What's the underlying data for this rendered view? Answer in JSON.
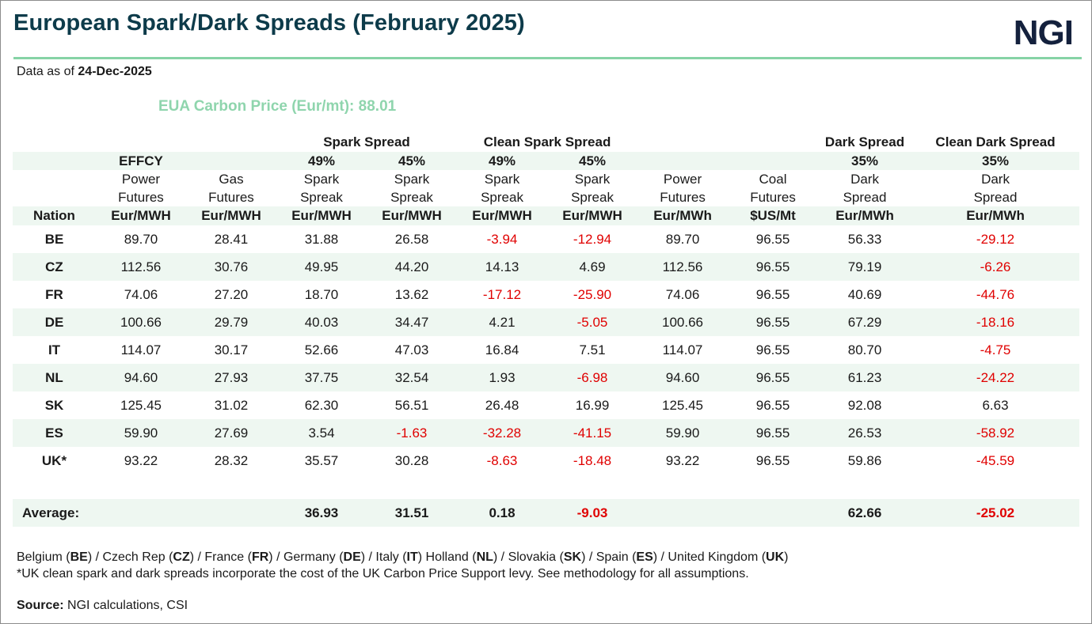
{
  "title": "European Spark/Dark Spreads (February 2025)",
  "logo": "NGI",
  "as_of_label": "Data as of",
  "as_of_date": "24-Dec-2025",
  "carbon_price": "EUA Carbon Price (Eur/mt): 88.01",
  "header": {
    "groups": {
      "spark": "Spark Spread",
      "clean_spark": "Clean Spark Spread",
      "dark": "Dark Spread",
      "clean_dark": "Clean Dark Spread"
    },
    "effcy": "EFFCY",
    "eff": {
      "spark_49": "49%",
      "spark_45": "45%",
      "clean_49": "49%",
      "clean_45": "45%",
      "dark_35": "35%",
      "clean_dark_35": "35%"
    },
    "line1": [
      "Power",
      "Gas",
      "Spark",
      "Spark",
      "Spark",
      "Spark",
      "Power",
      "Coal",
      "Dark",
      "Dark"
    ],
    "line2": [
      "Futures",
      "Futures",
      "Spreak",
      "Spreak",
      "Spreak",
      "Spreak",
      "Futures",
      "Futures",
      "Spread",
      "Spread"
    ],
    "units": [
      "Nation",
      "Eur/MWH",
      "Eur/MWH",
      "Eur/MWH",
      "Eur/MWH",
      "Eur/MWH",
      "Eur/MWH",
      "Eur/MWh",
      "$US/Mt",
      "Eur/MWh",
      "Eur/MWh"
    ]
  },
  "rows": [
    {
      "nation": "BE",
      "cells": [
        "89.70",
        "28.41",
        "31.88",
        "26.58",
        "-3.94",
        "-12.94",
        "89.70",
        "96.55",
        "56.33",
        "-29.12"
      ]
    },
    {
      "nation": "CZ",
      "cells": [
        "112.56",
        "30.76",
        "49.95",
        "44.20",
        "14.13",
        "4.69",
        "112.56",
        "96.55",
        "79.19",
        "-6.26"
      ]
    },
    {
      "nation": "FR",
      "cells": [
        "74.06",
        "27.20",
        "18.70",
        "13.62",
        "-17.12",
        "-25.90",
        "74.06",
        "96.55",
        "40.69",
        "-44.76"
      ]
    },
    {
      "nation": "DE",
      "cells": [
        "100.66",
        "29.79",
        "40.03",
        "34.47",
        "4.21",
        "-5.05",
        "100.66",
        "96.55",
        "67.29",
        "-18.16"
      ]
    },
    {
      "nation": "IT",
      "cells": [
        "114.07",
        "30.17",
        "52.66",
        "47.03",
        "16.84",
        "7.51",
        "114.07",
        "96.55",
        "80.70",
        "-4.75"
      ]
    },
    {
      "nation": "NL",
      "cells": [
        "94.60",
        "27.93",
        "37.75",
        "32.54",
        "1.93",
        "-6.98",
        "94.60",
        "96.55",
        "61.23",
        "-24.22"
      ]
    },
    {
      "nation": "SK",
      "cells": [
        "125.45",
        "31.02",
        "62.30",
        "56.51",
        "26.48",
        "16.99",
        "125.45",
        "96.55",
        "92.08",
        "6.63"
      ]
    },
    {
      "nation": "ES",
      "cells": [
        "59.90",
        "27.69",
        "3.54",
        "-1.63",
        "-32.28",
        "-41.15",
        "59.90",
        "96.55",
        "26.53",
        "-58.92"
      ]
    },
    {
      "nation": "UK*",
      "cells": [
        "93.22",
        "28.32",
        "35.57",
        "30.28",
        "-8.63",
        "-18.48",
        "93.22",
        "96.55",
        "59.86",
        "-45.59"
      ]
    }
  ],
  "average": {
    "label": "Average:",
    "spark_49": "36.93",
    "spark_45": "31.51",
    "clean_49": "0.18",
    "clean_45": "-9.03",
    "dark": "62.66",
    "clean_dark": "-25.02"
  },
  "footer": {
    "legend_parts": [
      "Belgium (",
      "BE",
      ") / Czech Rep (",
      "CZ",
      ") / France (",
      "FR",
      ") / Germany (",
      "DE",
      ") / Italy (",
      "IT",
      ") Holland (",
      "NL",
      ") / Slovakia (",
      "SK",
      ") / Spain (",
      "ES",
      ") / United Kingdom (",
      "UK",
      ")"
    ],
    "note": "*UK clean spark and dark spreads incorporate the cost of the UK Carbon Price Support levy. See methodology for all assumptions.",
    "source_label": "Source:",
    "source_text": " NGI calculations, CSI"
  },
  "colors": {
    "title": "#0d3b4a",
    "accent_rule": "#86d3a6",
    "carbon_text": "#8fd5ad",
    "band": "#eef7f1",
    "negative": "#e00000"
  }
}
